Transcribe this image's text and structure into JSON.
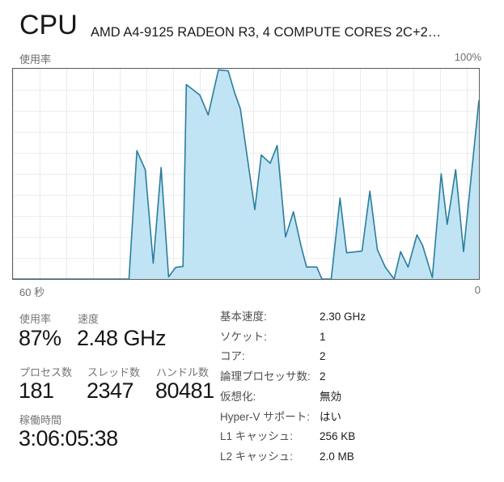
{
  "header": {
    "title": "CPU",
    "subtitle": "AMD A4-9125 RADEON R3, 4 COMPUTE CORES 2C+2…"
  },
  "chart": {
    "top_left_label": "使用率",
    "top_right_label": "100%",
    "bottom_left_label": "60 秒",
    "bottom_right_label": "0"
  },
  "chart_data": {
    "type": "area",
    "title": "CPU 使用率 (% over last 60 seconds)",
    "xlabel": "60 秒 → 0",
    "ylabel": "使用率",
    "ylim": [
      0,
      100
    ],
    "x_range_seconds": 60,
    "grid": true,
    "line_color": "#2a7e9e",
    "fill_color": "#c0e4f3",
    "points": [
      [
        0.0,
        0
      ],
      [
        0.249,
        0
      ],
      [
        0.266,
        61
      ],
      [
        0.284,
        52
      ],
      [
        0.301,
        7.5
      ],
      [
        0.318,
        53
      ],
      [
        0.334,
        1
      ],
      [
        0.349,
        5.5
      ],
      [
        0.365,
        6
      ],
      [
        0.372,
        92.5
      ],
      [
        0.401,
        87.5
      ],
      [
        0.419,
        78
      ],
      [
        0.441,
        99.5
      ],
      [
        0.462,
        99
      ],
      [
        0.476,
        88.5
      ],
      [
        0.488,
        81
      ],
      [
        0.497,
        67
      ],
      [
        0.519,
        33
      ],
      [
        0.533,
        59
      ],
      [
        0.552,
        55
      ],
      [
        0.567,
        63.5
      ],
      [
        0.585,
        20
      ],
      [
        0.602,
        32
      ],
      [
        0.618,
        16
      ],
      [
        0.63,
        5.7
      ],
      [
        0.652,
        5.7
      ],
      [
        0.663,
        0
      ],
      [
        0.683,
        0
      ],
      [
        0.702,
        38.5
      ],
      [
        0.716,
        12.5
      ],
      [
        0.749,
        13.3
      ],
      [
        0.766,
        41.8
      ],
      [
        0.782,
        14
      ],
      [
        0.799,
        5.7
      ],
      [
        0.818,
        0
      ],
      [
        0.832,
        13
      ],
      [
        0.848,
        5.7
      ],
      [
        0.867,
        21
      ],
      [
        0.879,
        16
      ],
      [
        0.9,
        0.7
      ],
      [
        0.919,
        50
      ],
      [
        0.932,
        26
      ],
      [
        0.95,
        52
      ],
      [
        0.967,
        13
      ],
      [
        1.0,
        85
      ]
    ]
  },
  "stats": {
    "usage": {
      "label": "使用率",
      "value": "87%"
    },
    "speed": {
      "label": "速度",
      "value": "2.48 GHz"
    },
    "processes": {
      "label": "プロセス数",
      "value": "181"
    },
    "threads": {
      "label": "スレッド数",
      "value": "2347"
    },
    "handles": {
      "label": "ハンドル数",
      "value": "80481"
    },
    "uptime": {
      "label": "稼働時間",
      "value": "3:06:05:38"
    }
  },
  "details": {
    "rows": [
      {
        "label": "基本速度:",
        "value": "2.30 GHz"
      },
      {
        "label": "ソケット:",
        "value": "1"
      },
      {
        "label": "コア:",
        "value": "2"
      },
      {
        "label": "論理プロセッサ数:",
        "value": "2"
      },
      {
        "label": "仮想化:",
        "value": "無効"
      },
      {
        "label": "Hyper-V サポート:",
        "value": "はい"
      },
      {
        "label": "L1 キャッシュ:",
        "value": "256 KB"
      },
      {
        "label": "L2 キャッシュ:",
        "value": "2.0 MB"
      }
    ]
  },
  "colors": {
    "chart_line": "#2a7e9e",
    "chart_fill": "#c0e4f3",
    "chart_border": "#5d5e60",
    "grid_line": "#ebebeb",
    "label_gray": "#757575",
    "value_dark": "#161616"
  }
}
